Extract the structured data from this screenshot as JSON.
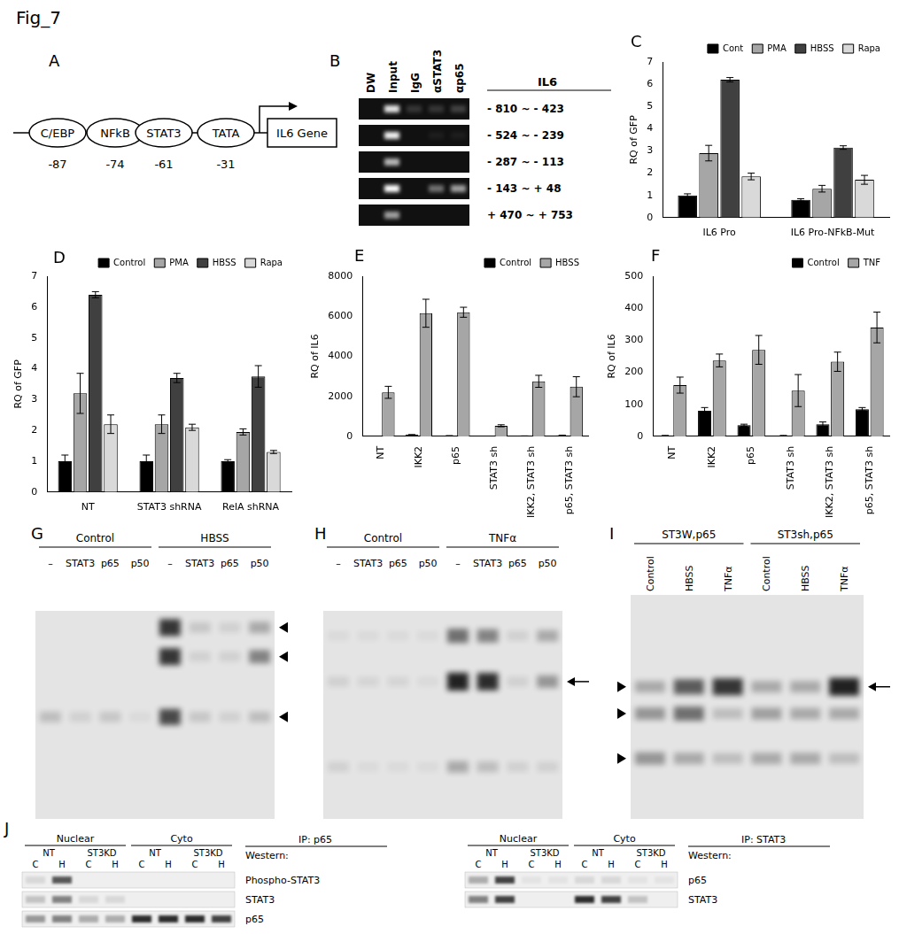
{
  "title": "Fig_7",
  "diagram": {
    "panel": "A",
    "elements": [
      {
        "label": "C/EBP",
        "position": -87
      },
      {
        "label": "NFkB",
        "position": -74
      },
      {
        "label": "STAT3",
        "position": -61
      },
      {
        "label": "TATA",
        "position": -31
      }
    ],
    "gene": "IL6 Gene"
  },
  "chip_gel": {
    "panel": "B",
    "gene": "IL6",
    "lanes": [
      "DW",
      "Input",
      "IgG",
      "αSTAT3",
      "αp65"
    ],
    "rows": [
      {
        "label": "- 810 ~ - 423",
        "bands": [
          0,
          0.9,
          0.15,
          0.15,
          0.2
        ]
      },
      {
        "label": "- 524 ~ - 239",
        "bands": [
          0,
          0.95,
          0,
          0.05,
          0.05
        ]
      },
      {
        "label": "- 287 ~ - 113",
        "bands": [
          0,
          0.7,
          0,
          0,
          0
        ]
      },
      {
        "label": "- 143 ~ + 48",
        "bands": [
          0,
          1.0,
          0,
          0.4,
          0.6
        ]
      },
      {
        "label": "+ 470 ~ + 753",
        "bands": [
          0,
          0.6,
          0,
          0,
          0
        ]
      }
    ]
  },
  "chart_data": [
    {
      "panel": "C",
      "type": "bar",
      "y_label": "RQ of GFP",
      "categories": [
        "IL6 Pro",
        "IL6 Pro-NFkB-Mut"
      ],
      "series": [
        {
          "name": "Cont",
          "color": "#000000",
          "values": [
            1.0,
            0.8
          ],
          "errors": [
            0.07,
            0.05
          ]
        },
        {
          "name": "PMA",
          "color": "#a6a6a6",
          "values": [
            2.9,
            1.3
          ],
          "errors": [
            0.35,
            0.15
          ]
        },
        {
          "name": "HBSS",
          "color": "#404040",
          "values": [
            6.2,
            3.15
          ],
          "errors": [
            0.1,
            0.08
          ]
        },
        {
          "name": "Rapa",
          "color": "#d9d9d9",
          "values": [
            1.85,
            1.7
          ],
          "errors": [
            0.15,
            0.2
          ]
        }
      ],
      "ylim": [
        0,
        7
      ],
      "yticks": [
        0,
        1,
        2,
        3,
        4,
        5,
        6,
        7
      ],
      "grid": false,
      "legend": "upper right"
    },
    {
      "panel": "D",
      "type": "bar",
      "y_label": "RQ of GFP",
      "categories": [
        "NT",
        "STAT3 shRNA",
        "RelA shRNA"
      ],
      "series": [
        {
          "name": "Control",
          "color": "#000000",
          "values": [
            1.0,
            1.0,
            1.0
          ],
          "errors": [
            0.2,
            0.2,
            0.05
          ]
        },
        {
          "name": "PMA",
          "color": "#a6a6a6",
          "values": [
            3.2,
            2.2,
            1.95
          ],
          "errors": [
            0.65,
            0.3,
            0.1
          ]
        },
        {
          "name": "HBSS",
          "color": "#404040",
          "values": [
            6.4,
            3.7,
            3.75
          ],
          "errors": [
            0.1,
            0.15,
            0.35
          ]
        },
        {
          "name": "Rapa",
          "color": "#d9d9d9",
          "values": [
            2.2,
            2.1,
            1.3
          ],
          "errors": [
            0.3,
            0.1,
            0.05
          ]
        }
      ],
      "ylim": [
        0,
        7
      ],
      "yticks": [
        0,
        1,
        2,
        3,
        4,
        5,
        6,
        7
      ],
      "grid": false,
      "legend": "upper right"
    },
    {
      "panel": "E",
      "type": "bar",
      "y_label": "RQ of IL6",
      "categories": [
        "NT",
        "IKK2",
        "p65",
        "STAT3 sh",
        "IKK2, STAT3 sh",
        "p65, STAT3 sh"
      ],
      "series": [
        {
          "name": "Control",
          "color": "#000000",
          "values": [
            10,
            80,
            30,
            10,
            20,
            50
          ],
          "errors": [
            0,
            10,
            5,
            0,
            5,
            10
          ]
        },
        {
          "name": "HBSS",
          "color": "#a6a6a6",
          "values": [
            2200,
            6150,
            6200,
            530,
            2750,
            2480
          ],
          "errors": [
            300,
            700,
            250,
            50,
            300,
            500
          ]
        }
      ],
      "ylim": [
        0,
        8000
      ],
      "yticks": [
        0,
        2000,
        4000,
        6000,
        8000
      ],
      "grid": false,
      "legend": "upper right"
    },
    {
      "panel": "F",
      "type": "bar",
      "y_label": "RQ of IL6",
      "categories": [
        "NT",
        "IKK2",
        "p65",
        "STAT3 sh",
        "IKK2, STAT3 sh",
        "p65, STAT3 sh"
      ],
      "series": [
        {
          "name": "Control",
          "color": "#000000",
          "values": [
            2,
            80,
            35,
            2,
            38,
            85
          ],
          "errors": [
            1,
            10,
            3,
            1,
            7,
            5
          ]
        },
        {
          "name": "TNF",
          "color": "#a6a6a6",
          "values": [
            160,
            237,
            270,
            143,
            233,
            340
          ],
          "errors": [
            25,
            20,
            45,
            50,
            30,
            48
          ]
        }
      ],
      "ylim": [
        0,
        500
      ],
      "yticks": [
        0,
        100,
        200,
        300,
        400,
        500
      ],
      "grid": false,
      "legend": "upper right"
    }
  ],
  "emsa_gels": [
    {
      "panel": "G",
      "groups": [
        {
          "label": "Control",
          "lanes": [
            "–",
            "STAT3",
            "p65",
            "p50"
          ]
        },
        {
          "label": "HBSS",
          "lanes": [
            "–",
            "STAT3",
            "p65",
            "p50"
          ]
        }
      ],
      "bands": [
        [
          0,
          0,
          0.2
        ],
        [
          0,
          0,
          0.1
        ],
        [
          0,
          0,
          0.15
        ],
        [
          0,
          0,
          0.05
        ],
        [
          0.9,
          0.9,
          0.8
        ],
        [
          0.15,
          0.1,
          0.15
        ],
        [
          0.1,
          0.1,
          0.1
        ],
        [
          0.3,
          0.5,
          0.2
        ]
      ]
    },
    {
      "panel": "H",
      "groups": [
        {
          "label": "Control",
          "lanes": [
            "–",
            "STAT3",
            "p65",
            "p50"
          ]
        },
        {
          "label": "TNFα",
          "lanes": [
            "–",
            "STAT3",
            "p65",
            "p50"
          ]
        }
      ],
      "bands": [
        [
          0.05,
          0.1,
          0.1
        ],
        [
          0.05,
          0.08,
          0.05
        ],
        [
          0.05,
          0.08,
          0.05
        ],
        [
          0.05,
          0.05,
          0.05
        ],
        [
          0.6,
          1.0,
          0.3
        ],
        [
          0.5,
          0.95,
          0.2
        ],
        [
          0.1,
          0.1,
          0.1
        ],
        [
          0.3,
          0.4,
          0.1
        ]
      ]
    },
    {
      "panel": "I",
      "groups": [
        {
          "label": "ST3W,p65",
          "lanes": [
            "Control",
            "HBSS",
            "TNFα"
          ]
        },
        {
          "label": "ST3sh,p65",
          "lanes": [
            "Control",
            "HBSS",
            "TNFα"
          ]
        }
      ],
      "bands": [
        [
          0.3,
          0.4,
          0.4
        ],
        [
          0.7,
          0.6,
          0.3
        ],
        [
          0.9,
          0.2,
          0.2
        ],
        [
          0.3,
          0.35,
          0.3
        ],
        [
          0.3,
          0.3,
          0.3
        ],
        [
          1.0,
          0.3,
          0.2
        ]
      ]
    }
  ],
  "blots": {
    "panel": "J",
    "panels": [
      {
        "ip": "IP: p65",
        "western": "Western:",
        "groups": [
          {
            "label": "Nuclear",
            "subgroups": [
              {
                "label": "NT",
                "lanes": [
                  "C",
                  "H"
                ]
              },
              {
                "label": "ST3KD",
                "lanes": [
                  "C",
                  "H"
                ]
              }
            ]
          },
          {
            "label": "Cyto",
            "subgroups": [
              {
                "label": "NT",
                "lanes": [
                  "C",
                  "H"
                ]
              },
              {
                "label": "ST3KD",
                "lanes": [
                  "C",
                  "H"
                ]
              }
            ]
          }
        ],
        "rows": [
          {
            "label": "Phospho-STAT3",
            "bands": [
              0.1,
              0.7,
              0,
              0,
              0,
              0,
              0,
              0
            ]
          },
          {
            "label": "STAT3",
            "bands": [
              0.2,
              0.5,
              0.1,
              0.1,
              0,
              0,
              0,
              0
            ]
          },
          {
            "label": "p65",
            "bands": [
              0.4,
              0.5,
              0.3,
              0.3,
              0.9,
              0.9,
              0.9,
              0.8
            ]
          }
        ]
      },
      {
        "ip": "IP: STAT3",
        "western": "Western:",
        "groups": [
          {
            "label": "Nuclear",
            "subgroups": [
              {
                "label": "NT",
                "lanes": [
                  "C",
                  "H"
                ]
              },
              {
                "label": "ST3KD",
                "lanes": [
                  "C",
                  "H"
                ]
              }
            ]
          },
          {
            "label": "Cyto",
            "subgroups": [
              {
                "label": "NT",
                "lanes": [
                  "C",
                  "H"
                ]
              },
              {
                "label": "ST3KD",
                "lanes": [
                  "C",
                  "H"
                ]
              }
            ]
          }
        ],
        "rows": [
          {
            "label": "p65",
            "bands": [
              0.3,
              0.8,
              0.05,
              0.05,
              0.1,
              0.1,
              0.05,
              0.05
            ]
          },
          {
            "label": "STAT3",
            "bands": [
              0.5,
              0.8,
              0,
              0,
              0.9,
              0.8,
              0.2,
              0
            ]
          }
        ]
      }
    ]
  }
}
